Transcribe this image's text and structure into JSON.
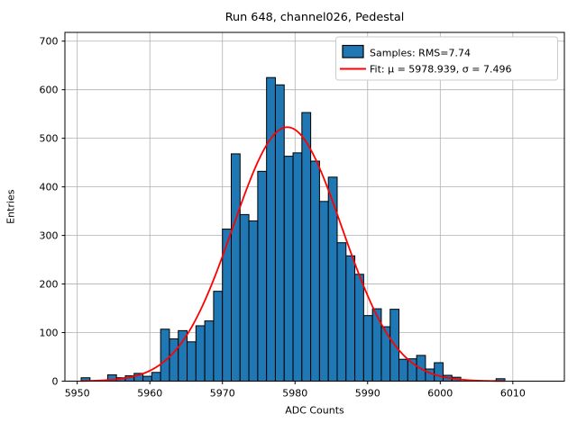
{
  "figure": {
    "title": "Run 648, channel026, Pedestal",
    "xlabel": "ADC Counts",
    "ylabel": "Entries"
  },
  "chart_data": {
    "type": "bar",
    "subtype": "histogram",
    "title": "Run 648, channel026, Pedestal",
    "xlabel": "ADC Counts",
    "ylabel": "Entries",
    "xlim": [
      5948.3,
      6017.1
    ],
    "ylim": [
      0,
      718
    ],
    "xticks": [
      5950,
      5960,
      5970,
      5980,
      5990,
      6000,
      6010
    ],
    "yticks": [
      0,
      100,
      200,
      300,
      400,
      500,
      600,
      700
    ],
    "grid": true,
    "grid_color": "#b0b0b0",
    "bar_color": "#1f77b4",
    "bar_edge_color": "#000000",
    "fit_color": "#ff0000",
    "legend_position": "upper right",
    "histogram": {
      "bin_start": 5950.54,
      "bin_width": 1.216,
      "counts": [
        7,
        0,
        0,
        13,
        7,
        11,
        16,
        10,
        18,
        107,
        87,
        104,
        81,
        114,
        124,
        185,
        313,
        468,
        343,
        330,
        432,
        625,
        610,
        463,
        470,
        553,
        453,
        370,
        420,
        285,
        258,
        220,
        135,
        149,
        112,
        148,
        45,
        46,
        53,
        25,
        38,
        12,
        8,
        0,
        0,
        0,
        0,
        5
      ]
    },
    "fit": {
      "mu": 5978.939,
      "sigma": 7.496,
      "peak": 523,
      "x_start": 5950.5,
      "x_end": 6008.9
    },
    "legend": {
      "samples_label": "Samples: RMS=7.74",
      "fit_label": "Fit: μ = 5978.939, σ = 7.496"
    }
  }
}
